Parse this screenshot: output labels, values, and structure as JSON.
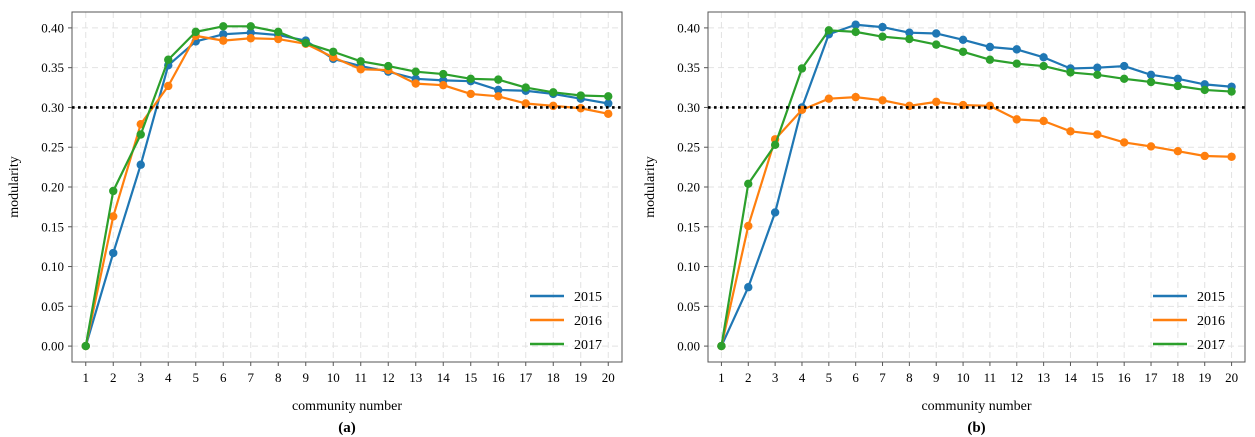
{
  "chart_data": [
    {
      "type": "line",
      "panel_label": "(a)",
      "xlabel": "community number",
      "ylabel": "modularity",
      "x": [
        1,
        2,
        3,
        4,
        5,
        6,
        7,
        8,
        9,
        10,
        11,
        12,
        13,
        14,
        15,
        16,
        17,
        18,
        19,
        20
      ],
      "ylim": [
        -0.02,
        0.42
      ],
      "yticks": [
        "0.00",
        "0.05",
        "0.10",
        "0.15",
        "0.20",
        "0.25",
        "0.30",
        "0.35",
        "0.40"
      ],
      "reference_line": {
        "y": 0.3,
        "style": "dotted",
        "color": "#000000"
      },
      "grid": true,
      "legend_position": "bottom-right",
      "series": [
        {
          "name": "2015",
          "color": "#1f77b4",
          "values": [
            0.0,
            0.117,
            0.228,
            0.353,
            0.383,
            0.392,
            0.394,
            0.391,
            0.384,
            0.361,
            0.352,
            0.345,
            0.336,
            0.334,
            0.333,
            0.322,
            0.321,
            0.317,
            0.311,
            0.305
          ]
        },
        {
          "name": "2016",
          "color": "#ff7f0e",
          "values": [
            0.0,
            0.163,
            0.279,
            0.327,
            0.39,
            0.384,
            0.387,
            0.386,
            0.38,
            0.363,
            0.348,
            0.347,
            0.33,
            0.328,
            0.317,
            0.314,
            0.305,
            0.302,
            0.299,
            0.292
          ]
        },
        {
          "name": "2017",
          "color": "#2ca02c",
          "values": [
            0.0,
            0.195,
            0.266,
            0.36,
            0.395,
            0.402,
            0.402,
            0.395,
            0.381,
            0.37,
            0.358,
            0.352,
            0.345,
            0.342,
            0.336,
            0.335,
            0.325,
            0.319,
            0.315,
            0.314
          ]
        }
      ]
    },
    {
      "type": "line",
      "panel_label": "(b)",
      "xlabel": "community number",
      "ylabel": "modularity",
      "x": [
        1,
        2,
        3,
        4,
        5,
        6,
        7,
        8,
        9,
        10,
        11,
        12,
        13,
        14,
        15,
        16,
        17,
        18,
        19,
        20
      ],
      "ylim": [
        -0.02,
        0.42
      ],
      "yticks": [
        "0.00",
        "0.05",
        "0.10",
        "0.15",
        "0.20",
        "0.25",
        "0.30",
        "0.35",
        "0.40"
      ],
      "reference_line": {
        "y": 0.3,
        "style": "dotted",
        "color": "#000000"
      },
      "grid": true,
      "legend_position": "bottom-right",
      "series": [
        {
          "name": "2015",
          "color": "#1f77b4",
          "values": [
            0.0,
            0.074,
            0.168,
            0.3,
            0.392,
            0.404,
            0.401,
            0.394,
            0.393,
            0.385,
            0.376,
            0.373,
            0.363,
            0.349,
            0.35,
            0.352,
            0.341,
            0.336,
            0.329,
            0.326
          ]
        },
        {
          "name": "2016",
          "color": "#ff7f0e",
          "values": [
            0.0,
            0.151,
            0.26,
            0.297,
            0.311,
            0.313,
            0.309,
            0.302,
            0.307,
            0.303,
            0.302,
            0.285,
            0.283,
            0.27,
            0.266,
            0.256,
            0.251,
            0.245,
            0.239,
            0.238
          ]
        },
        {
          "name": "2017",
          "color": "#2ca02c",
          "values": [
            0.0,
            0.204,
            0.253,
            0.349,
            0.397,
            0.395,
            0.389,
            0.386,
            0.379,
            0.37,
            0.36,
            0.355,
            0.352,
            0.344,
            0.341,
            0.336,
            0.332,
            0.327,
            0.322,
            0.32
          ]
        }
      ]
    }
  ]
}
